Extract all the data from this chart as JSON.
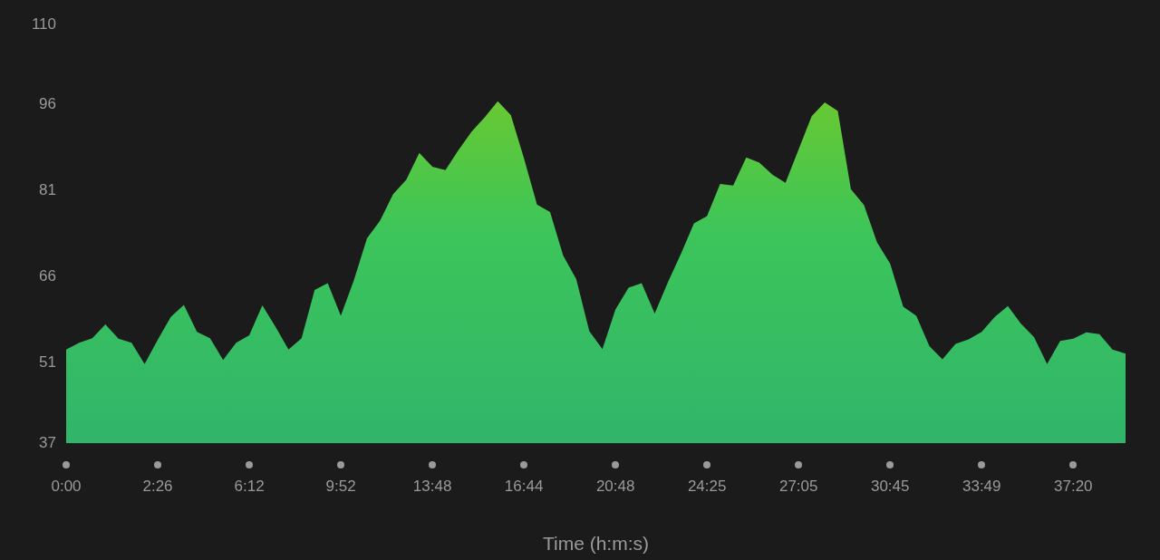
{
  "chart_data": {
    "type": "area",
    "xlabel": "Time (h:m:s)",
    "categories": [
      "0:00",
      null,
      null,
      null,
      null,
      null,
      null,
      "2:26",
      null,
      null,
      null,
      null,
      null,
      null,
      "6:12",
      null,
      null,
      null,
      null,
      null,
      null,
      "9:52",
      null,
      null,
      null,
      null,
      null,
      null,
      "13:48",
      null,
      null,
      null,
      null,
      null,
      null,
      "16:44",
      null,
      null,
      null,
      null,
      null,
      null,
      "20:48",
      null,
      null,
      null,
      null,
      null,
      null,
      "24:25",
      null,
      null,
      null,
      null,
      null,
      null,
      "27:05",
      null,
      null,
      null,
      null,
      null,
      null,
      "30:45",
      null,
      null,
      null,
      null,
      null,
      null,
      "33:49",
      null,
      null,
      null,
      null,
      null,
      null,
      "37:20",
      null,
      null,
      null,
      null
    ],
    "series": [
      {
        "color": "#3cc55a",
        "values": [
          53.3,
          54.5,
          55.3,
          57.7,
          55.2,
          54.5,
          50.8,
          55.0,
          59.0,
          61.1,
          56.4,
          55.3,
          51.5,
          54.5,
          55.8,
          61.0,
          57.3,
          53.3,
          55.3,
          63.7,
          64.9,
          59.2,
          65.4,
          72.7,
          75.8,
          80.4,
          82.9,
          87.6,
          85.2,
          84.6,
          88.1,
          91.3,
          93.8,
          96.6,
          94.2,
          86.7,
          78.6,
          77.3,
          69.7,
          65.6,
          56.5,
          53.4,
          60.3,
          64.1,
          64.9,
          59.6,
          65.0,
          70.0,
          75.3,
          76.6,
          82.2,
          81.9,
          86.8,
          85.9,
          83.8,
          82.4,
          88.2,
          94.0,
          96.4,
          94.9,
          81.3,
          78.5,
          72.0,
          68.3,
          60.8,
          59.2,
          53.9,
          51.6,
          54.3,
          55.1,
          56.4,
          59.0,
          60.9,
          57.8,
          55.5,
          50.8,
          54.8,
          55.2,
          56.3,
          56.0,
          53.3,
          52.6
        ]
      }
    ],
    "ylim": [
      37,
      110
    ],
    "yticks": [
      37,
      51,
      66,
      81,
      96,
      110
    ],
    "grid": false,
    "legend": false
  }
}
